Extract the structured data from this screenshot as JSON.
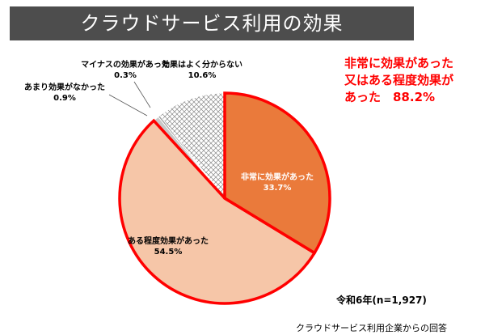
{
  "title": "クラウドサービス利用の効果",
  "highlight": {
    "line1": "非常に効果があった",
    "line2": "又はある程度効果が",
    "line3": "あった　88.2%",
    "color": "#ff0000"
  },
  "note": "令和6年(n=1,927)",
  "source": "クラウドサービス利用企業からの回答",
  "chart_data": {
    "type": "pie",
    "title": "",
    "start_angle_deg": 0,
    "direction": "clockwise",
    "slices": [
      {
        "label": "非常に効果があった",
        "value_label": "33.7%",
        "value": 33.7,
        "color": "#ea7a3b",
        "highlighted": true
      },
      {
        "label": "ある程度効果があった",
        "value_label": "54.5%",
        "value": 54.5,
        "color": "#f6c6a8",
        "highlighted": true
      },
      {
        "label": "あまり効果がなかった",
        "value_label": "0.9%",
        "value": 0.9,
        "color": "#c8c8c8",
        "highlighted": false
      },
      {
        "label": "マイナスの効果があった",
        "value_label": "0.3%",
        "value": 0.3,
        "color": "#9a9a9a",
        "highlighted": false
      },
      {
        "label": "効果はよく分からない",
        "value_label": "10.6%",
        "value": 10.6,
        "color": "crosshatch",
        "highlighted": false
      }
    ],
    "highlight_outline_color": "#ff0000"
  }
}
